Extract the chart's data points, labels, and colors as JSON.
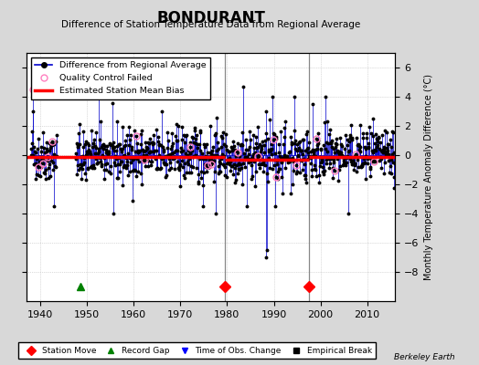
{
  "title": "BONDURANT",
  "subtitle": "Difference of Station Temperature Data from Regional Average",
  "ylabel": "Monthly Temperature Anomaly Difference (°C)",
  "berkeley_earth": "Berkeley Earth",
  "xlim": [
    1937,
    2016
  ],
  "ylim": [
    -10,
    7
  ],
  "yticks": [
    -8,
    -6,
    -4,
    -2,
    0,
    2,
    4,
    6
  ],
  "xticks": [
    1940,
    1950,
    1960,
    1970,
    1980,
    1990,
    2000,
    2010
  ],
  "bg_color": "#d8d8d8",
  "plot_bg_color": "#ffffff",
  "station_moves": [
    1979.5,
    1997.5
  ],
  "record_gaps": [
    1948.5
  ],
  "vertical_lines": [
    1979.5,
    1997.5
  ],
  "vertical_line_color": "#888888",
  "bias_segments": [
    {
      "x_start": 1937,
      "x_end": 1979.5,
      "bias": -0.15
    },
    {
      "x_start": 1979.5,
      "x_end": 1997.5,
      "bias": -0.3
    },
    {
      "x_start": 1997.5,
      "x_end": 2016,
      "bias": -0.1
    }
  ],
  "line_color": "#0000cc",
  "dot_color": "#000000",
  "qc_color": "#ff80c0",
  "bias_color": "#ff0000",
  "grid_color": "#bbbbbb",
  "seed": 42
}
